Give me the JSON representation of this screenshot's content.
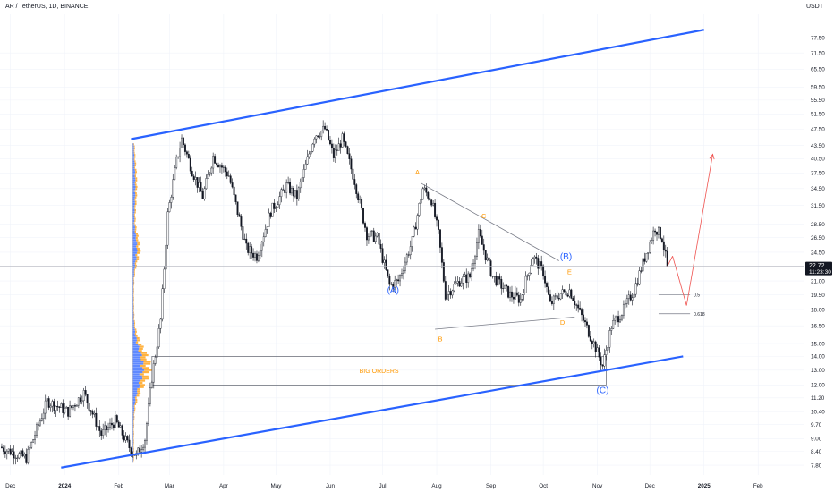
{
  "header": {
    "title": "AR / TetherUS, 1D, BINANCE",
    "currency": "USDT"
  },
  "price_badge": {
    "price": "22.72",
    "countdown": "11:23:30"
  },
  "chart_data": {
    "type": "candlestick",
    "symbol": "AR / TetherUS",
    "interval": "1D",
    "exchange": "BINANCE",
    "y_scale": "log",
    "ylim": [
      7.4,
      88
    ],
    "y_ticks": [
      "77.50",
      "71.50",
      "65.50",
      "59.50",
      "55.50",
      "51.50",
      "47.50",
      "43.50",
      "40.50",
      "37.50",
      "34.50",
      "31.50",
      "28.50",
      "26.50",
      "24.50",
      "21.00",
      "19.50",
      "18.00",
      "16.50",
      "15.00",
      "14.00",
      "13.00",
      "12.00",
      "11.20",
      "10.40",
      "9.70",
      "9.00",
      "8.40",
      "7.80"
    ],
    "x_ticks": [
      {
        "label": "Dec",
        "date": "2023-12-01"
      },
      {
        "label": "2024",
        "date": "2024-01-01"
      },
      {
        "label": "Feb",
        "date": "2024-02-01"
      },
      {
        "label": "Mar",
        "date": "2024-03-01"
      },
      {
        "label": "Apr",
        "date": "2024-04-01"
      },
      {
        "label": "May",
        "date": "2024-05-01"
      },
      {
        "label": "Jun",
        "date": "2024-06-01"
      },
      {
        "label": "Jul",
        "date": "2024-07-01"
      },
      {
        "label": "Aug",
        "date": "2024-08-01"
      },
      {
        "label": "Sep",
        "date": "2024-09-01"
      },
      {
        "label": "Oct",
        "date": "2024-10-01"
      },
      {
        "label": "Nov",
        "date": "2024-11-01"
      },
      {
        "label": "Dec",
        "date": "2024-12-01"
      },
      {
        "label": "2025",
        "date": "2025-01-01"
      },
      {
        "label": "Feb",
        "date": "2025-02-01"
      }
    ],
    "xlim": [
      "2023-11-25",
      "2025-02-27"
    ],
    "last_price": 22.72,
    "price_path": [
      {
        "date": "2023-11-25",
        "price": 8.6
      },
      {
        "date": "2023-12-10",
        "price": 8.1
      },
      {
        "date": "2023-12-22",
        "price": 11.0
      },
      {
        "date": "2024-01-03",
        "price": 10.4
      },
      {
        "date": "2024-01-12",
        "price": 11.5
      },
      {
        "date": "2024-01-22",
        "price": 9.2
      },
      {
        "date": "2024-01-30",
        "price": 9.9
      },
      {
        "date": "2024-02-07",
        "price": 8.6
      },
      {
        "date": "2024-02-11",
        "price": 8.2
      },
      {
        "date": "2024-02-16",
        "price": 9.0
      },
      {
        "date": "2024-02-20",
        "price": 12.5
      },
      {
        "date": "2024-02-25",
        "price": 17.0
      },
      {
        "date": "2024-02-29",
        "price": 30.0
      },
      {
        "date": "2024-03-05",
        "price": 40.0
      },
      {
        "date": "2024-03-08",
        "price": 45.0
      },
      {
        "date": "2024-03-14",
        "price": 38.0
      },
      {
        "date": "2024-03-20",
        "price": 33.0
      },
      {
        "date": "2024-03-26",
        "price": 41.0
      },
      {
        "date": "2024-04-04",
        "price": 37.0
      },
      {
        "date": "2024-04-14",
        "price": 25.0
      },
      {
        "date": "2024-04-20",
        "price": 24.0
      },
      {
        "date": "2024-04-28",
        "price": 30.5
      },
      {
        "date": "2024-05-07",
        "price": 35.0
      },
      {
        "date": "2024-05-13",
        "price": 33.0
      },
      {
        "date": "2024-05-23",
        "price": 46.0
      },
      {
        "date": "2024-05-29",
        "price": 47.5
      },
      {
        "date": "2024-06-03",
        "price": 41.0
      },
      {
        "date": "2024-06-08",
        "price": 45.0
      },
      {
        "date": "2024-06-15",
        "price": 36.0
      },
      {
        "date": "2024-06-22",
        "price": 27.0
      },
      {
        "date": "2024-06-28",
        "price": 26.5
      },
      {
        "date": "2024-07-05",
        "price": 20.5
      },
      {
        "date": "2024-07-10",
        "price": 21.0
      },
      {
        "date": "2024-07-18",
        "price": 26.0
      },
      {
        "date": "2024-07-24",
        "price": 34.5
      },
      {
        "date": "2024-07-29",
        "price": 32.5
      },
      {
        "date": "2024-08-02",
        "price": 27.0
      },
      {
        "date": "2024-08-06",
        "price": 19.5
      },
      {
        "date": "2024-08-14",
        "price": 21.0
      },
      {
        "date": "2024-08-20",
        "price": 21.5
      },
      {
        "date": "2024-08-25",
        "price": 27.0
      },
      {
        "date": "2024-09-02",
        "price": 21.5
      },
      {
        "date": "2024-09-12",
        "price": 19.5
      },
      {
        "date": "2024-09-18",
        "price": 19.0
      },
      {
        "date": "2024-09-25",
        "price": 24.0
      },
      {
        "date": "2024-10-01",
        "price": 22.0
      },
      {
        "date": "2024-10-05",
        "price": 18.5
      },
      {
        "date": "2024-10-10",
        "price": 19.5
      },
      {
        "date": "2024-10-16",
        "price": 20.0
      },
      {
        "date": "2024-10-24",
        "price": 17.0
      },
      {
        "date": "2024-10-30",
        "price": 15.0
      },
      {
        "date": "2024-11-04",
        "price": 13.3
      },
      {
        "date": "2024-11-09",
        "price": 16.5
      },
      {
        "date": "2024-11-16",
        "price": 18.0
      },
      {
        "date": "2024-11-22",
        "price": 20.0
      },
      {
        "date": "2024-11-29",
        "price": 24.5
      },
      {
        "date": "2024-12-04",
        "price": 28.0
      },
      {
        "date": "2024-12-08",
        "price": 26.5
      },
      {
        "date": "2024-12-11",
        "price": 22.72
      }
    ],
    "channel": {
      "color": "#2962ff",
      "upper": [
        {
          "date": "2024-02-08",
          "price": 45.0
        },
        {
          "date": "2025-01-01",
          "price": 81.0
        }
      ],
      "lower": [
        {
          "date": "2023-12-30",
          "price": 7.7
        },
        {
          "date": "2024-12-20",
          "price": 14.0
        }
      ]
    },
    "triangle": {
      "color": "#787b86",
      "upper": [
        {
          "date": "2024-07-23",
          "price": 35.5
        },
        {
          "date": "2024-10-10",
          "price": 23.4
        }
      ],
      "lower": [
        {
          "date": "2024-07-31",
          "price": 16.2
        },
        {
          "date": "2024-10-19",
          "price": 17.3
        }
      ]
    },
    "box": {
      "label": "BIG ORDERS",
      "from": "2024-02-20",
      "to": "2024-11-06",
      "top": 14.0,
      "bottom": 12.0,
      "label_color": "#ff9800"
    },
    "fib_levels": [
      {
        "label": "0.5",
        "price": 19.5,
        "from": "2024-12-06",
        "to": "2024-12-24"
      },
      {
        "label": "0.618",
        "price": 17.6,
        "from": "2024-12-06",
        "to": "2024-12-24"
      }
    ],
    "projection": {
      "color": "#ef5350",
      "points": [
        {
          "date": "2024-12-11",
          "price": 22.72
        },
        {
          "date": "2024-12-14",
          "price": 24.0
        },
        {
          "date": "2024-12-22",
          "price": 18.4
        },
        {
          "date": "2025-01-06",
          "price": 41.5
        }
      ]
    },
    "wave_labels": [
      {
        "text": "(A)",
        "date": "2024-07-07",
        "price": 19.7,
        "color": "#2962ff",
        "size": "large"
      },
      {
        "text": "(B)",
        "date": "2024-10-14",
        "price": 23.6,
        "color": "#2962ff",
        "size": "large"
      },
      {
        "text": "(C)",
        "date": "2024-11-04",
        "price": 11.5,
        "color": "#2962ff",
        "size": "large"
      },
      {
        "text": "A",
        "date": "2024-07-21",
        "price": 37.2,
        "color": "#ff9800",
        "size": "small"
      },
      {
        "text": "B",
        "date": "2024-08-03",
        "price": 15.2,
        "color": "#ff9800",
        "size": "small"
      },
      {
        "text": "C",
        "date": "2024-08-28",
        "price": 29.4,
        "color": "#ff9800",
        "size": "small"
      },
      {
        "text": "D",
        "date": "2024-10-12",
        "price": 16.6,
        "color": "#ff9800",
        "size": "small"
      },
      {
        "text": "E",
        "date": "2024-10-16",
        "price": 21.8,
        "color": "#ff9800",
        "size": "small"
      }
    ],
    "volume_profile": {
      "colors": [
        "#2962ff",
        "#ff9800"
      ],
      "price_from": 7.9,
      "price_to": 44.0,
      "poc_price": 13.2
    }
  }
}
